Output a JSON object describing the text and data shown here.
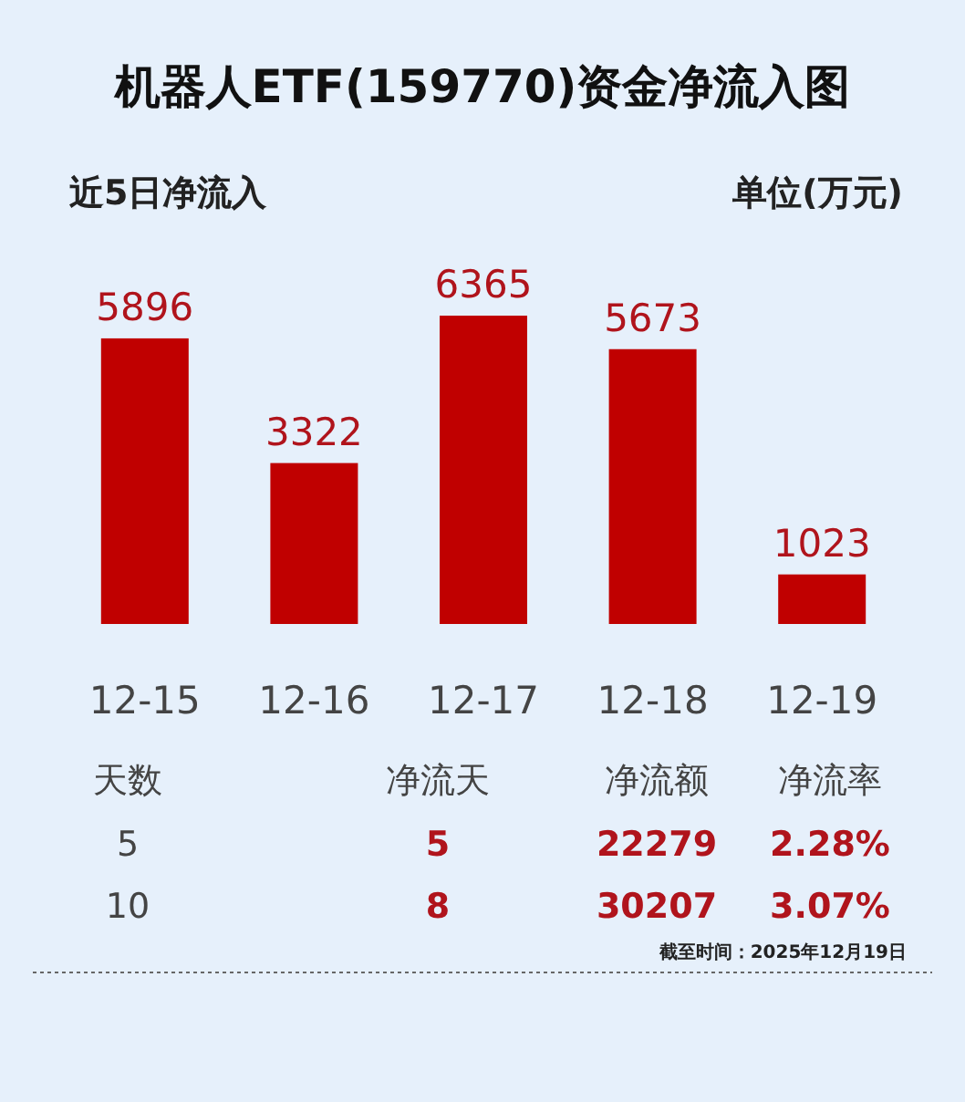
{
  "chart_data": {
    "type": "bar",
    "title": "机器人ETF(159770)资金净流入图",
    "subtitle": "近5日净流入",
    "ylabel": "单位(万元)",
    "categories": [
      "12-15",
      "12-16",
      "12-17",
      "12-18",
      "12-19"
    ],
    "values": [
      5896,
      3322,
      6365,
      5673,
      1023
    ],
    "color": "#c00000",
    "data_labels": true,
    "annotations": [
      "天数",
      "净流天",
      "净流额",
      "净流率",
      "5",
      "5",
      "22279",
      "2.28%",
      "10",
      "8",
      "30207",
      "3.07%",
      "截至时间：2025年12月19日"
    ]
  }
}
